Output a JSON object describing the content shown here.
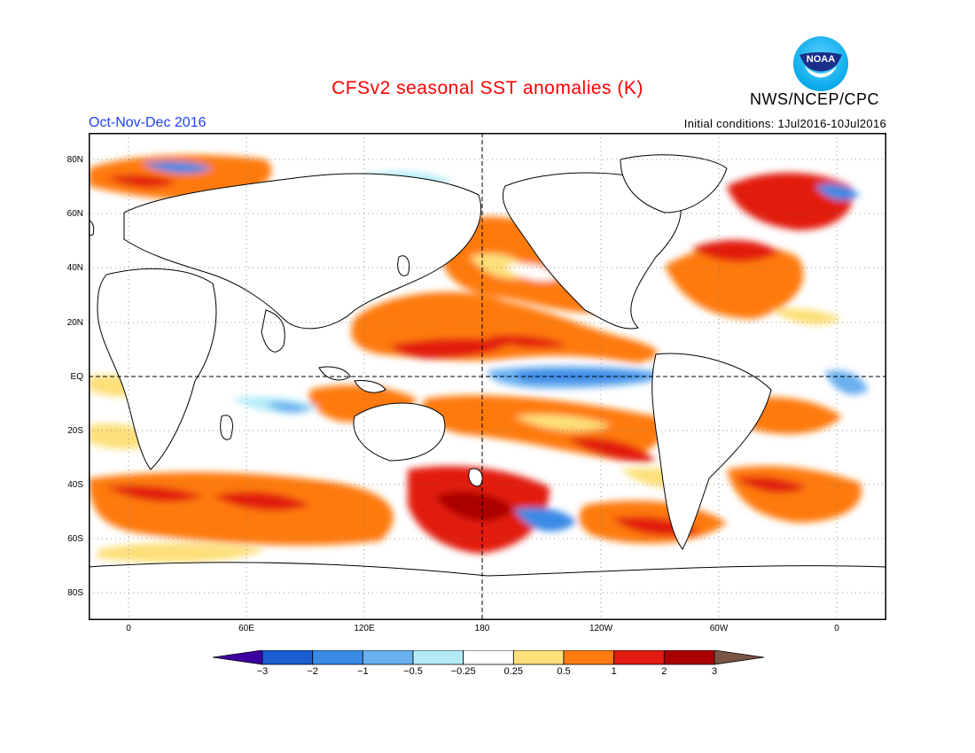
{
  "header": {
    "title": "CFSv2 seasonal SST anomalies (K)",
    "season": "Oct-Nov-Dec 2016",
    "initial_conditions": "Initial conditions: 1Jul2016-10Jul2016",
    "agency": "NWS/NCEP/CPC",
    "logo_text": "NOAA"
  },
  "map": {
    "lat_labels": [
      "80N",
      "60N",
      "40N",
      "20N",
      "EQ",
      "20S",
      "40S",
      "60S",
      "80S"
    ],
    "lon_labels": [
      "0",
      "60E",
      "120E",
      "180",
      "120W",
      "60W",
      "0"
    ]
  },
  "colorbar": {
    "labels": [
      "-3",
      "-2",
      "-1",
      "-0.5",
      "-0.25",
      "0.25",
      "0.5",
      "1",
      "2",
      "3"
    ],
    "colors": [
      "#3c00a0",
      "#1a5fd1",
      "#3a8ae6",
      "#6ab0f0",
      "#b3ecf8",
      "#ffffff",
      "#fde07a",
      "#ff7a10",
      "#e21a10",
      "#aa0000",
      "#7a5545"
    ]
  },
  "colors": {
    "title": "#ff0000",
    "season": "#2040ff",
    "land_outline": "#000000"
  }
}
